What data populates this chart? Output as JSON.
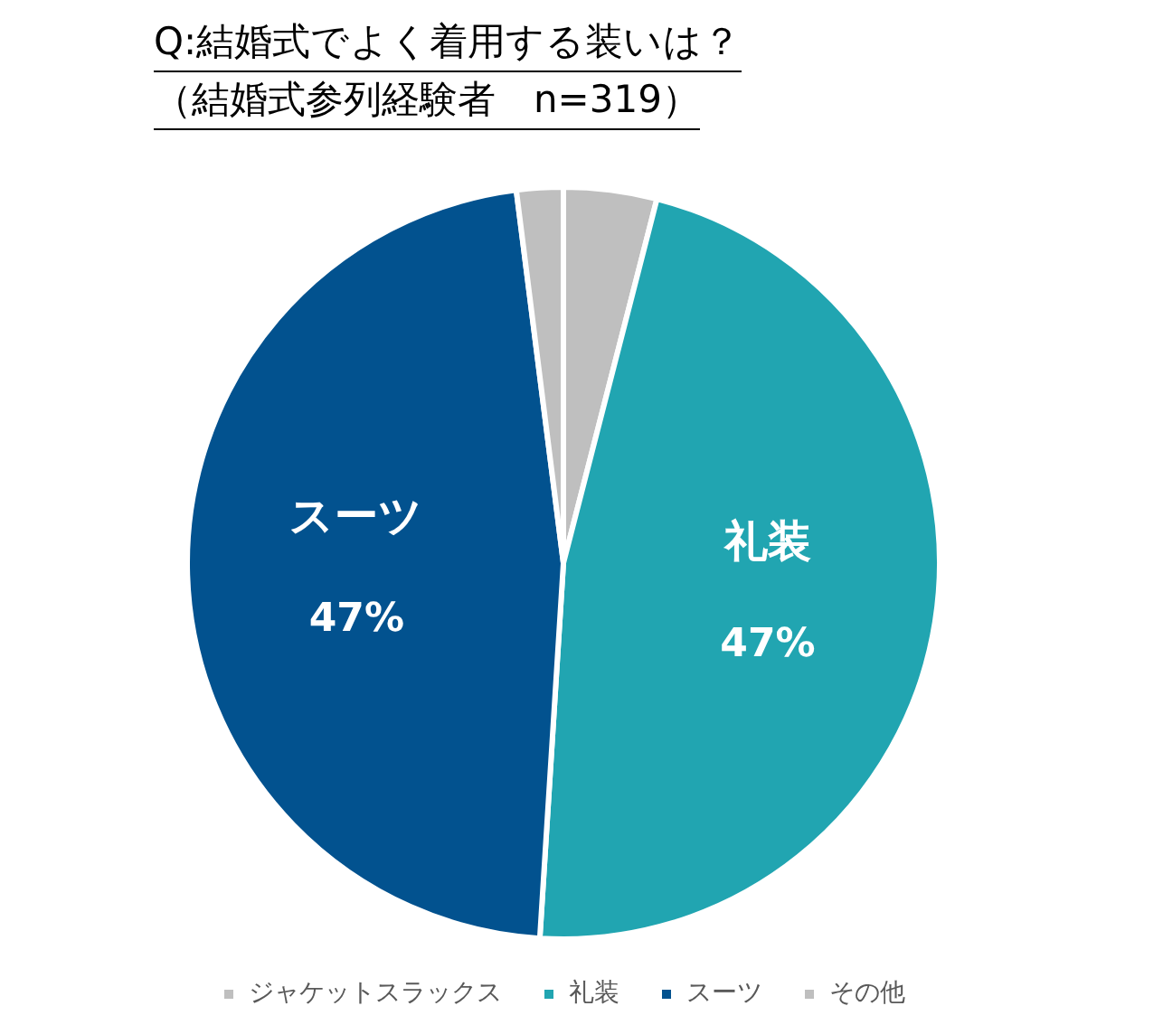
{
  "chart_data": {
    "type": "pie",
    "title": "Q:結婚式でよく着用する装いは？",
    "subtitle": "（結婚式参列経験者　n=319）",
    "categories": [
      "ジャケットスラックス",
      "礼装",
      "スーツ",
      "その他"
    ],
    "values": [
      4,
      47,
      47,
      2
    ],
    "colors": [
      "#bfbfbf",
      "#21a5b1",
      "#02528f",
      "#bfbfbf"
    ],
    "value_labels": [
      null,
      "47%",
      "47%",
      null
    ],
    "legend": "bottom"
  }
}
